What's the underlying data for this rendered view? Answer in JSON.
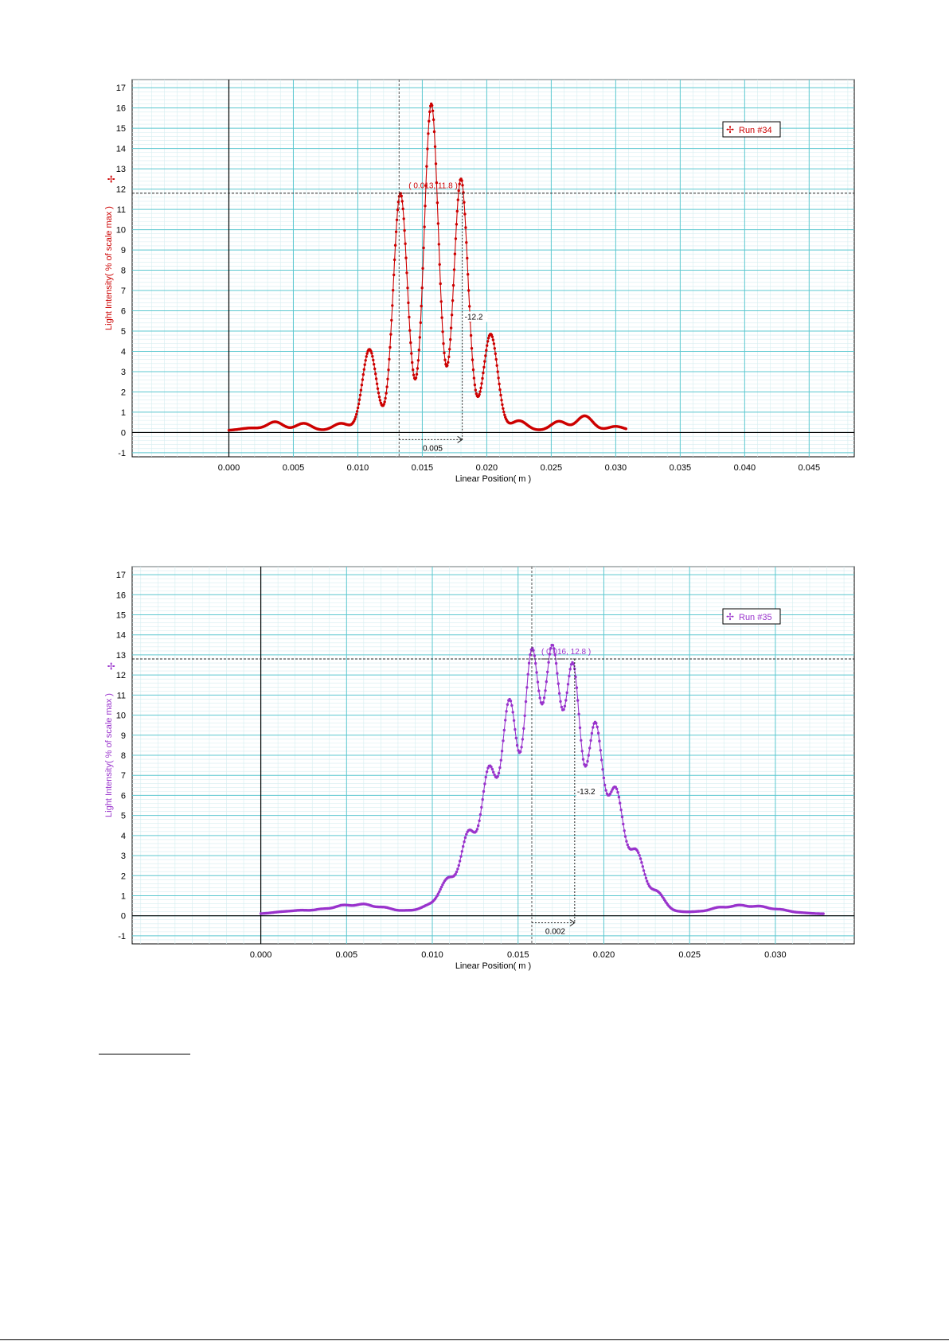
{
  "charts": [
    {
      "type": "line",
      "series_name": "Run #34",
      "color": "#cc0000",
      "xlabel": "Linear Position( m )",
      "ylabel": "Light Intensity( % of scale max )",
      "xlim": [
        -0.0075,
        0.0485
      ],
      "ylim": [
        -1.2,
        17.4
      ],
      "x_ticks": [
        "0.000",
        "0.005",
        "0.010",
        "0.015",
        "0.020",
        "0.025",
        "0.030",
        "0.035",
        "0.040",
        "0.045"
      ],
      "y_ticks": [
        "-1",
        "0",
        "1",
        "2",
        "3",
        "4",
        "5",
        "6",
        "7",
        "8",
        "9",
        "10",
        "11",
        "12",
        "13",
        "14",
        "15",
        "16",
        "17"
      ],
      "x_tick_values": [
        0,
        0.005,
        0.01,
        0.015,
        0.02,
        0.025,
        0.03,
        0.035,
        0.04,
        0.045
      ],
      "y_tick_values": [
        -1,
        0,
        1,
        2,
        3,
        4,
        5,
        6,
        7,
        8,
        9,
        10,
        11,
        12,
        13,
        14,
        15,
        16,
        17
      ],
      "grid": true,
      "legend": "top-right",
      "coordinate_label": "( 0.013, 11.8 )",
      "delta_x_label": "0.005",
      "delta_y_label": "-12.2",
      "cursor": {
        "x": 0.0132,
        "y": 11.8,
        "x2": 0.0181
      },
      "curve_x_range": [
        0.0,
        0.0308
      ],
      "peaks": [
        {
          "x": 0.0003,
          "h": 0.0,
          "w": 0.001
        },
        {
          "x": 0.0017,
          "h": 0.12,
          "w": 0.0008
        },
        {
          "x": 0.0036,
          "h": 0.42,
          "w": 0.0006
        },
        {
          "x": 0.0058,
          "h": 0.35,
          "w": 0.0006
        },
        {
          "x": 0.0087,
          "h": 0.35,
          "w": 0.0006
        },
        {
          "x": 0.0109,
          "h": 4.0,
          "w": 0.00055
        },
        {
          "x": 0.0133,
          "h": 11.7,
          "w": 0.00055
        },
        {
          "x": 0.0157,
          "h": 16.1,
          "w": 0.00055
        },
        {
          "x": 0.018,
          "h": 12.4,
          "w": 0.00055
        },
        {
          "x": 0.0203,
          "h": 4.75,
          "w": 0.00055
        },
        {
          "x": 0.0225,
          "h": 0.48,
          "w": 0.0006
        },
        {
          "x": 0.0256,
          "h": 0.45,
          "w": 0.0006
        },
        {
          "x": 0.0276,
          "h": 0.72,
          "w": 0.0006
        },
        {
          "x": 0.03,
          "h": 0.2,
          "w": 0.0006
        }
      ]
    },
    {
      "type": "line",
      "series_name": "Run #35",
      "color": "#9933cc",
      "xlabel": "Linear Position( m )",
      "ylabel": "Light Intensity( % of scale max )",
      "xlim": [
        -0.0075,
        0.0346
      ],
      "ylim": [
        -1.4,
        17.4
      ],
      "x_ticks": [
        "0.000",
        "0.005",
        "0.010",
        "0.015",
        "0.020",
        "0.025",
        "0.030"
      ],
      "y_ticks": [
        "-1",
        "0",
        "1",
        "2",
        "3",
        "4",
        "5",
        "6",
        "7",
        "8",
        "9",
        "10",
        "11",
        "12",
        "13",
        "14",
        "15",
        "16",
        "17"
      ],
      "x_tick_values": [
        0,
        0.005,
        0.01,
        0.015,
        0.02,
        0.025,
        0.03
      ],
      "y_tick_values": [
        -1,
        0,
        1,
        2,
        3,
        4,
        5,
        6,
        7,
        8,
        9,
        10,
        11,
        12,
        13,
        14,
        15,
        16,
        17
      ],
      "grid": true,
      "legend": "top-right",
      "coordinate_label": "( 0.016, 12.8 )",
      "delta_x_label": "0.002",
      "delta_y_label": "-13.2",
      "cursor": {
        "x": 0.0158,
        "y": 12.8,
        "x2": 0.0183
      },
      "curve_x_range": [
        0.0,
        0.0328
      ],
      "peaks": [
        {
          "x": 0.0013,
          "h": 0.1,
          "w": 0.0006
        },
        {
          "x": 0.0024,
          "h": 0.15,
          "w": 0.0005
        },
        {
          "x": 0.0036,
          "h": 0.22,
          "w": 0.0005
        },
        {
          "x": 0.0048,
          "h": 0.4,
          "w": 0.0005
        },
        {
          "x": 0.006,
          "h": 0.45,
          "w": 0.0005
        },
        {
          "x": 0.0072,
          "h": 0.3,
          "w": 0.0005
        },
        {
          "x": 0.0085,
          "h": 0.15,
          "w": 0.0005
        },
        {
          "x": 0.0098,
          "h": 0.4,
          "w": 0.0005
        },
        {
          "x": 0.0109,
          "h": 1.65,
          "w": 0.00045
        },
        {
          "x": 0.0121,
          "h": 3.9,
          "w": 0.00045
        },
        {
          "x": 0.0133,
          "h": 6.95,
          "w": 0.00045
        },
        {
          "x": 0.0145,
          "h": 10.3,
          "w": 0.00045
        },
        {
          "x": 0.0158,
          "h": 12.7,
          "w": 0.00045
        },
        {
          "x": 0.017,
          "h": 12.7,
          "w": 0.00045
        },
        {
          "x": 0.0182,
          "h": 12.0,
          "w": 0.00045
        },
        {
          "x": 0.0195,
          "h": 9.2,
          "w": 0.00045
        },
        {
          "x": 0.0207,
          "h": 5.95,
          "w": 0.00045
        },
        {
          "x": 0.0219,
          "h": 3.0,
          "w": 0.00045
        },
        {
          "x": 0.0231,
          "h": 1.05,
          "w": 0.00045
        },
        {
          "x": 0.0243,
          "h": 0.1,
          "w": 0.0005
        },
        {
          "x": 0.0255,
          "h": 0.1,
          "w": 0.0005
        },
        {
          "x": 0.0267,
          "h": 0.3,
          "w": 0.0005
        },
        {
          "x": 0.0279,
          "h": 0.4,
          "w": 0.0005
        },
        {
          "x": 0.0291,
          "h": 0.35,
          "w": 0.0005
        },
        {
          "x": 0.0303,
          "h": 0.2,
          "w": 0.0005
        },
        {
          "x": 0.0315,
          "h": 0.05,
          "w": 0.0005
        }
      ]
    }
  ]
}
